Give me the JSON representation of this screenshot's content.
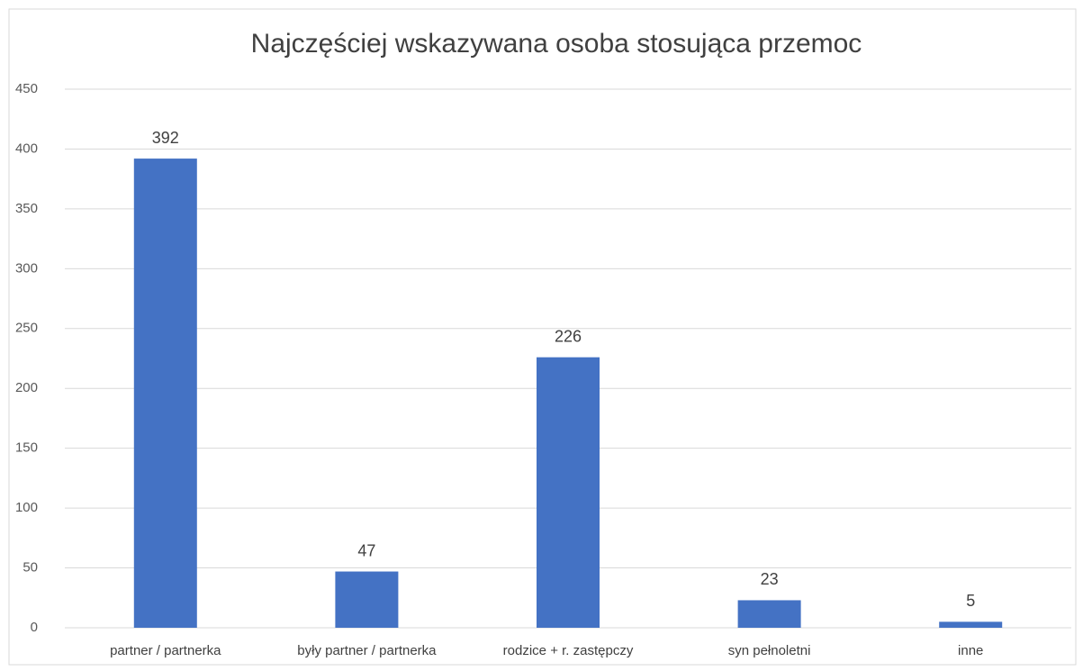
{
  "chart_data": {
    "type": "bar",
    "title": "Najczęściej wskazywana osoba stosująca przemoc",
    "categories": [
      "partner / partnerka",
      "były partner / partnerka",
      "rodzice + r. zastępczy",
      "syn pełnoletni",
      "inne"
    ],
    "values": [
      392,
      47,
      226,
      23,
      5
    ],
    "color": "#4472c4",
    "ylim": [
      0,
      450
    ],
    "yticks": [
      0,
      50,
      100,
      150,
      200,
      250,
      300,
      350,
      400,
      450
    ],
    "grid": true
  }
}
